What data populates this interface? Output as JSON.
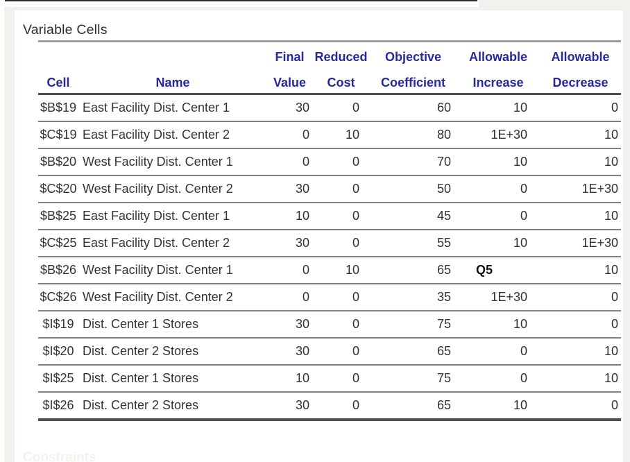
{
  "page": {
    "background": "#ffffff",
    "frame_color": "#f2f1ee",
    "edge_line_color": "#2f2f2f"
  },
  "report": {
    "section_title": "Variable Cells",
    "faint_bottom_text": "Constraints",
    "colors": {
      "header_text": "#28289b",
      "body_text": "#333333",
      "rule_light": "#9c9c9c",
      "rule_dark": "#4d4d4d"
    },
    "table": {
      "columns": [
        {
          "id": "cell",
          "header_line1": "",
          "header_line2": "Cell"
        },
        {
          "id": "name",
          "header_line1": "",
          "header_line2": "Name"
        },
        {
          "id": "final_value",
          "header_line1": "Final",
          "header_line2": "Value"
        },
        {
          "id": "reduced_cost",
          "header_line1": "Reduced",
          "header_line2": "Cost"
        },
        {
          "id": "objective_coefficient",
          "header_line1": "Objective",
          "header_line2": "Coefficient"
        },
        {
          "id": "allowable_increase",
          "header_line1": "Allowable",
          "header_line2": "Increase"
        },
        {
          "id": "allowable_decrease",
          "header_line1": "Allowable",
          "header_line2": "Decrease"
        }
      ],
      "rows": [
        {
          "cell": "$B$19",
          "name": "East Facility Dist. Center 1",
          "final_value": "30",
          "reduced_cost": "0",
          "objective_coefficient": "60",
          "allowable_increase": "10",
          "allowable_decrease": "0"
        },
        {
          "cell": "$C$19",
          "name": "East Facility Dist. Center 2",
          "final_value": "0",
          "reduced_cost": "10",
          "objective_coefficient": "80",
          "allowable_increase": "1E+30",
          "allowable_decrease": "10"
        },
        {
          "cell": "$B$20",
          "name": "West Facility Dist. Center 1",
          "final_value": "0",
          "reduced_cost": "0",
          "objective_coefficient": "70",
          "allowable_increase": "10",
          "allowable_decrease": "10"
        },
        {
          "cell": "$C$20",
          "name": "West Facility Dist. Center 2",
          "final_value": "30",
          "reduced_cost": "0",
          "objective_coefficient": "50",
          "allowable_increase": "0",
          "allowable_decrease": "1E+30"
        },
        {
          "cell": "$B$25",
          "name": "East Facility Dist. Center 1",
          "final_value": "10",
          "reduced_cost": "0",
          "objective_coefficient": "45",
          "allowable_increase": "0",
          "allowable_decrease": "10"
        },
        {
          "cell": "$C$25",
          "name": "East Facility Dist. Center 2",
          "final_value": "30",
          "reduced_cost": "0",
          "objective_coefficient": "55",
          "allowable_increase": "10",
          "allowable_decrease": "1E+30"
        },
        {
          "cell": "$B$26",
          "name": "West Facility Dist. Center 1",
          "final_value": "0",
          "reduced_cost": "10",
          "objective_coefficient": "65",
          "allowable_increase": "Q5",
          "allowable_decrease": "10"
        },
        {
          "cell": "$C$26",
          "name": "West Facility Dist. Center 2",
          "final_value": "0",
          "reduced_cost": "0",
          "objective_coefficient": "35",
          "allowable_increase": "1E+30",
          "allowable_decrease": "0"
        },
        {
          "cell": "$I$19",
          "name": "Dist. Center 1 Stores",
          "final_value": "30",
          "reduced_cost": "0",
          "objective_coefficient": "75",
          "allowable_increase": "10",
          "allowable_decrease": "0"
        },
        {
          "cell": "$I$20",
          "name": "Dist. Center 2 Stores",
          "final_value": "30",
          "reduced_cost": "0",
          "objective_coefficient": "65",
          "allowable_increase": "0",
          "allowable_decrease": "10"
        },
        {
          "cell": "$I$25",
          "name": "Dist. Center 1 Stores",
          "final_value": "10",
          "reduced_cost": "0",
          "objective_coefficient": "75",
          "allowable_increase": "0",
          "allowable_decrease": "10"
        },
        {
          "cell": "$I$26",
          "name": "Dist. Center 2 Stores",
          "final_value": "30",
          "reduced_cost": "0",
          "objective_coefficient": "65",
          "allowable_increase": "10",
          "allowable_decrease": "0"
        }
      ],
      "annotation_cell": {
        "row_index": 6,
        "column_id": "allowable_increase",
        "text": "Q5"
      }
    }
  }
}
